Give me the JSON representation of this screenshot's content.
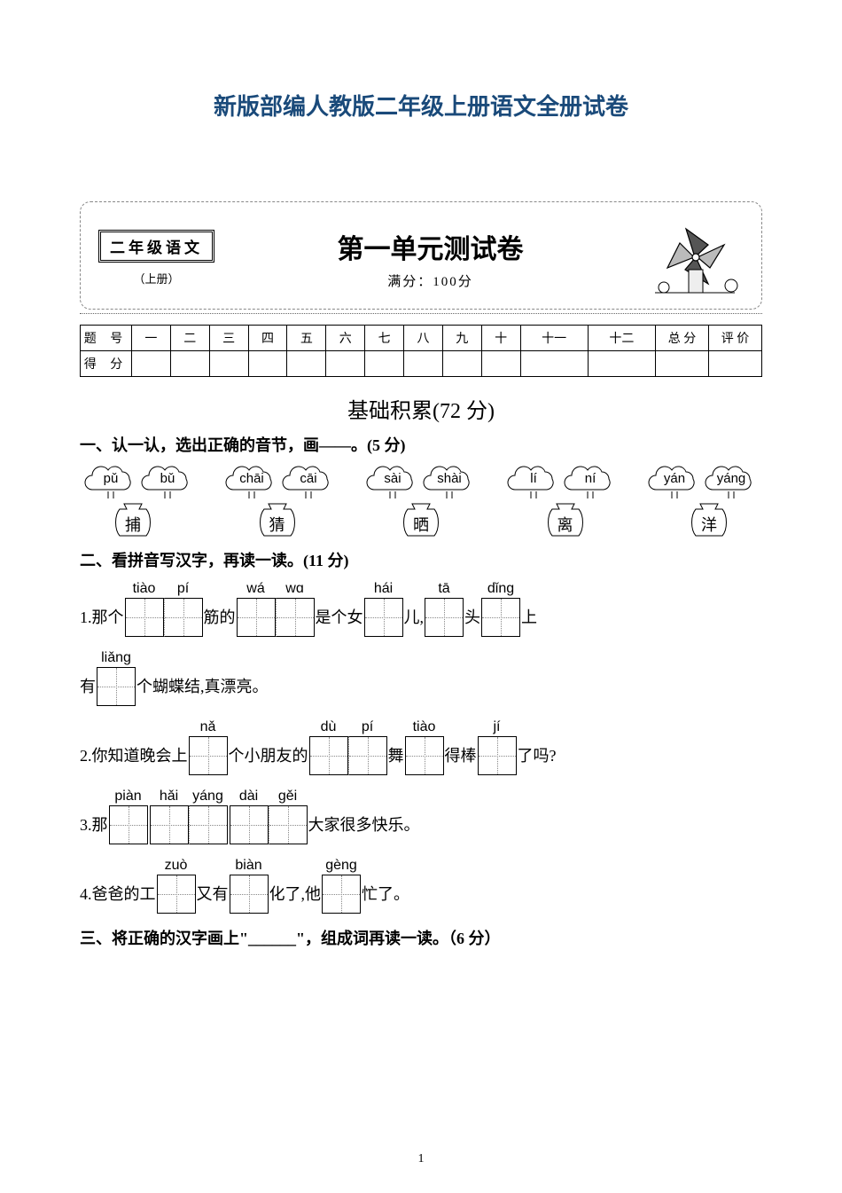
{
  "page_number": "1",
  "main_title": "新版部编人教版二年级上册语文全册试卷",
  "header": {
    "subject": "二年级语文",
    "book": "（上册）",
    "unit_title": "第一单元测试卷",
    "full_score_label": "满分：100分"
  },
  "score_table": {
    "row1_label": "题 号",
    "cols": [
      "一",
      "二",
      "三",
      "四",
      "五",
      "六",
      "七",
      "八",
      "九",
      "十",
      "十一",
      "十二",
      "总 分",
      "评 价"
    ],
    "row2_label": "得 分"
  },
  "section_title": "基础积累(72 分)",
  "q1": {
    "head": "一、认一认，选出正确的音节，画——。(5 分)",
    "pairs": [
      {
        "a": "pǔ",
        "b": "bǔ",
        "char": "捕"
      },
      {
        "a": "chāi",
        "b": "cāi",
        "char": "猜"
      },
      {
        "a": "sài",
        "b": "shài",
        "char": "晒"
      },
      {
        "a": "lí",
        "b": "ní",
        "char": "离"
      },
      {
        "a": "yán",
        "b": "yáng",
        "char": "洋"
      }
    ]
  },
  "q2": {
    "head": "二、看拼音写汉字，再读一读。(11 分)",
    "lines": [
      {
        "pre": "1.那个",
        "units": [
          {
            "p": "tiào"
          },
          {
            "p": "pí"
          }
        ],
        "mid1": "筋的",
        "units2": [
          {
            "p": "wá"
          },
          {
            "p": "wɑ"
          }
        ],
        "mid2": "是个女",
        "units3": [
          {
            "p": "hái"
          }
        ],
        "mid3": "儿,",
        "units4": [
          {
            "p": "tā"
          }
        ],
        "mid4": "头",
        "units5": [
          {
            "p": "dǐng"
          }
        ],
        "post": "上"
      },
      {
        "pre": "有",
        "units": [
          {
            "p": "liǎng"
          }
        ],
        "post": "个蝴蝶结,真漂亮。"
      },
      {
        "pre": "2.你知道晚会上",
        "units": [
          {
            "p": "nǎ"
          }
        ],
        "mid1": "个小朋友的",
        "units2": [
          {
            "p": "dù"
          },
          {
            "p": "pí"
          }
        ],
        "mid2": "舞",
        "units3": [
          {
            "p": "tiào"
          }
        ],
        "mid3": "得棒",
        "units4": [
          {
            "p": "jí"
          }
        ],
        "post": "了吗?"
      },
      {
        "pre": "3.那",
        "units": [
          {
            "p": "piàn"
          }
        ],
        "units2": [
          {
            "p": "hǎi"
          },
          {
            "p": "yáng"
          }
        ],
        "units3": [
          {
            "p": "dài"
          },
          {
            "p": "gěi"
          }
        ],
        "post": "大家很多快乐。"
      },
      {
        "pre": "4.爸爸的工",
        "units": [
          {
            "p": "zuò"
          }
        ],
        "mid1": "又有",
        "units2": [
          {
            "p": "biàn"
          }
        ],
        "mid2": "化了,他",
        "units3": [
          {
            "p": "gèng"
          }
        ],
        "post": "忙了。"
      }
    ]
  },
  "q3": {
    "head": "三、将正确的汉字画上\"______\"，组成词再读一读。（6 分）"
  },
  "colors": {
    "title": "#1a4a7a",
    "border": "#000000",
    "dash": "#888888"
  }
}
